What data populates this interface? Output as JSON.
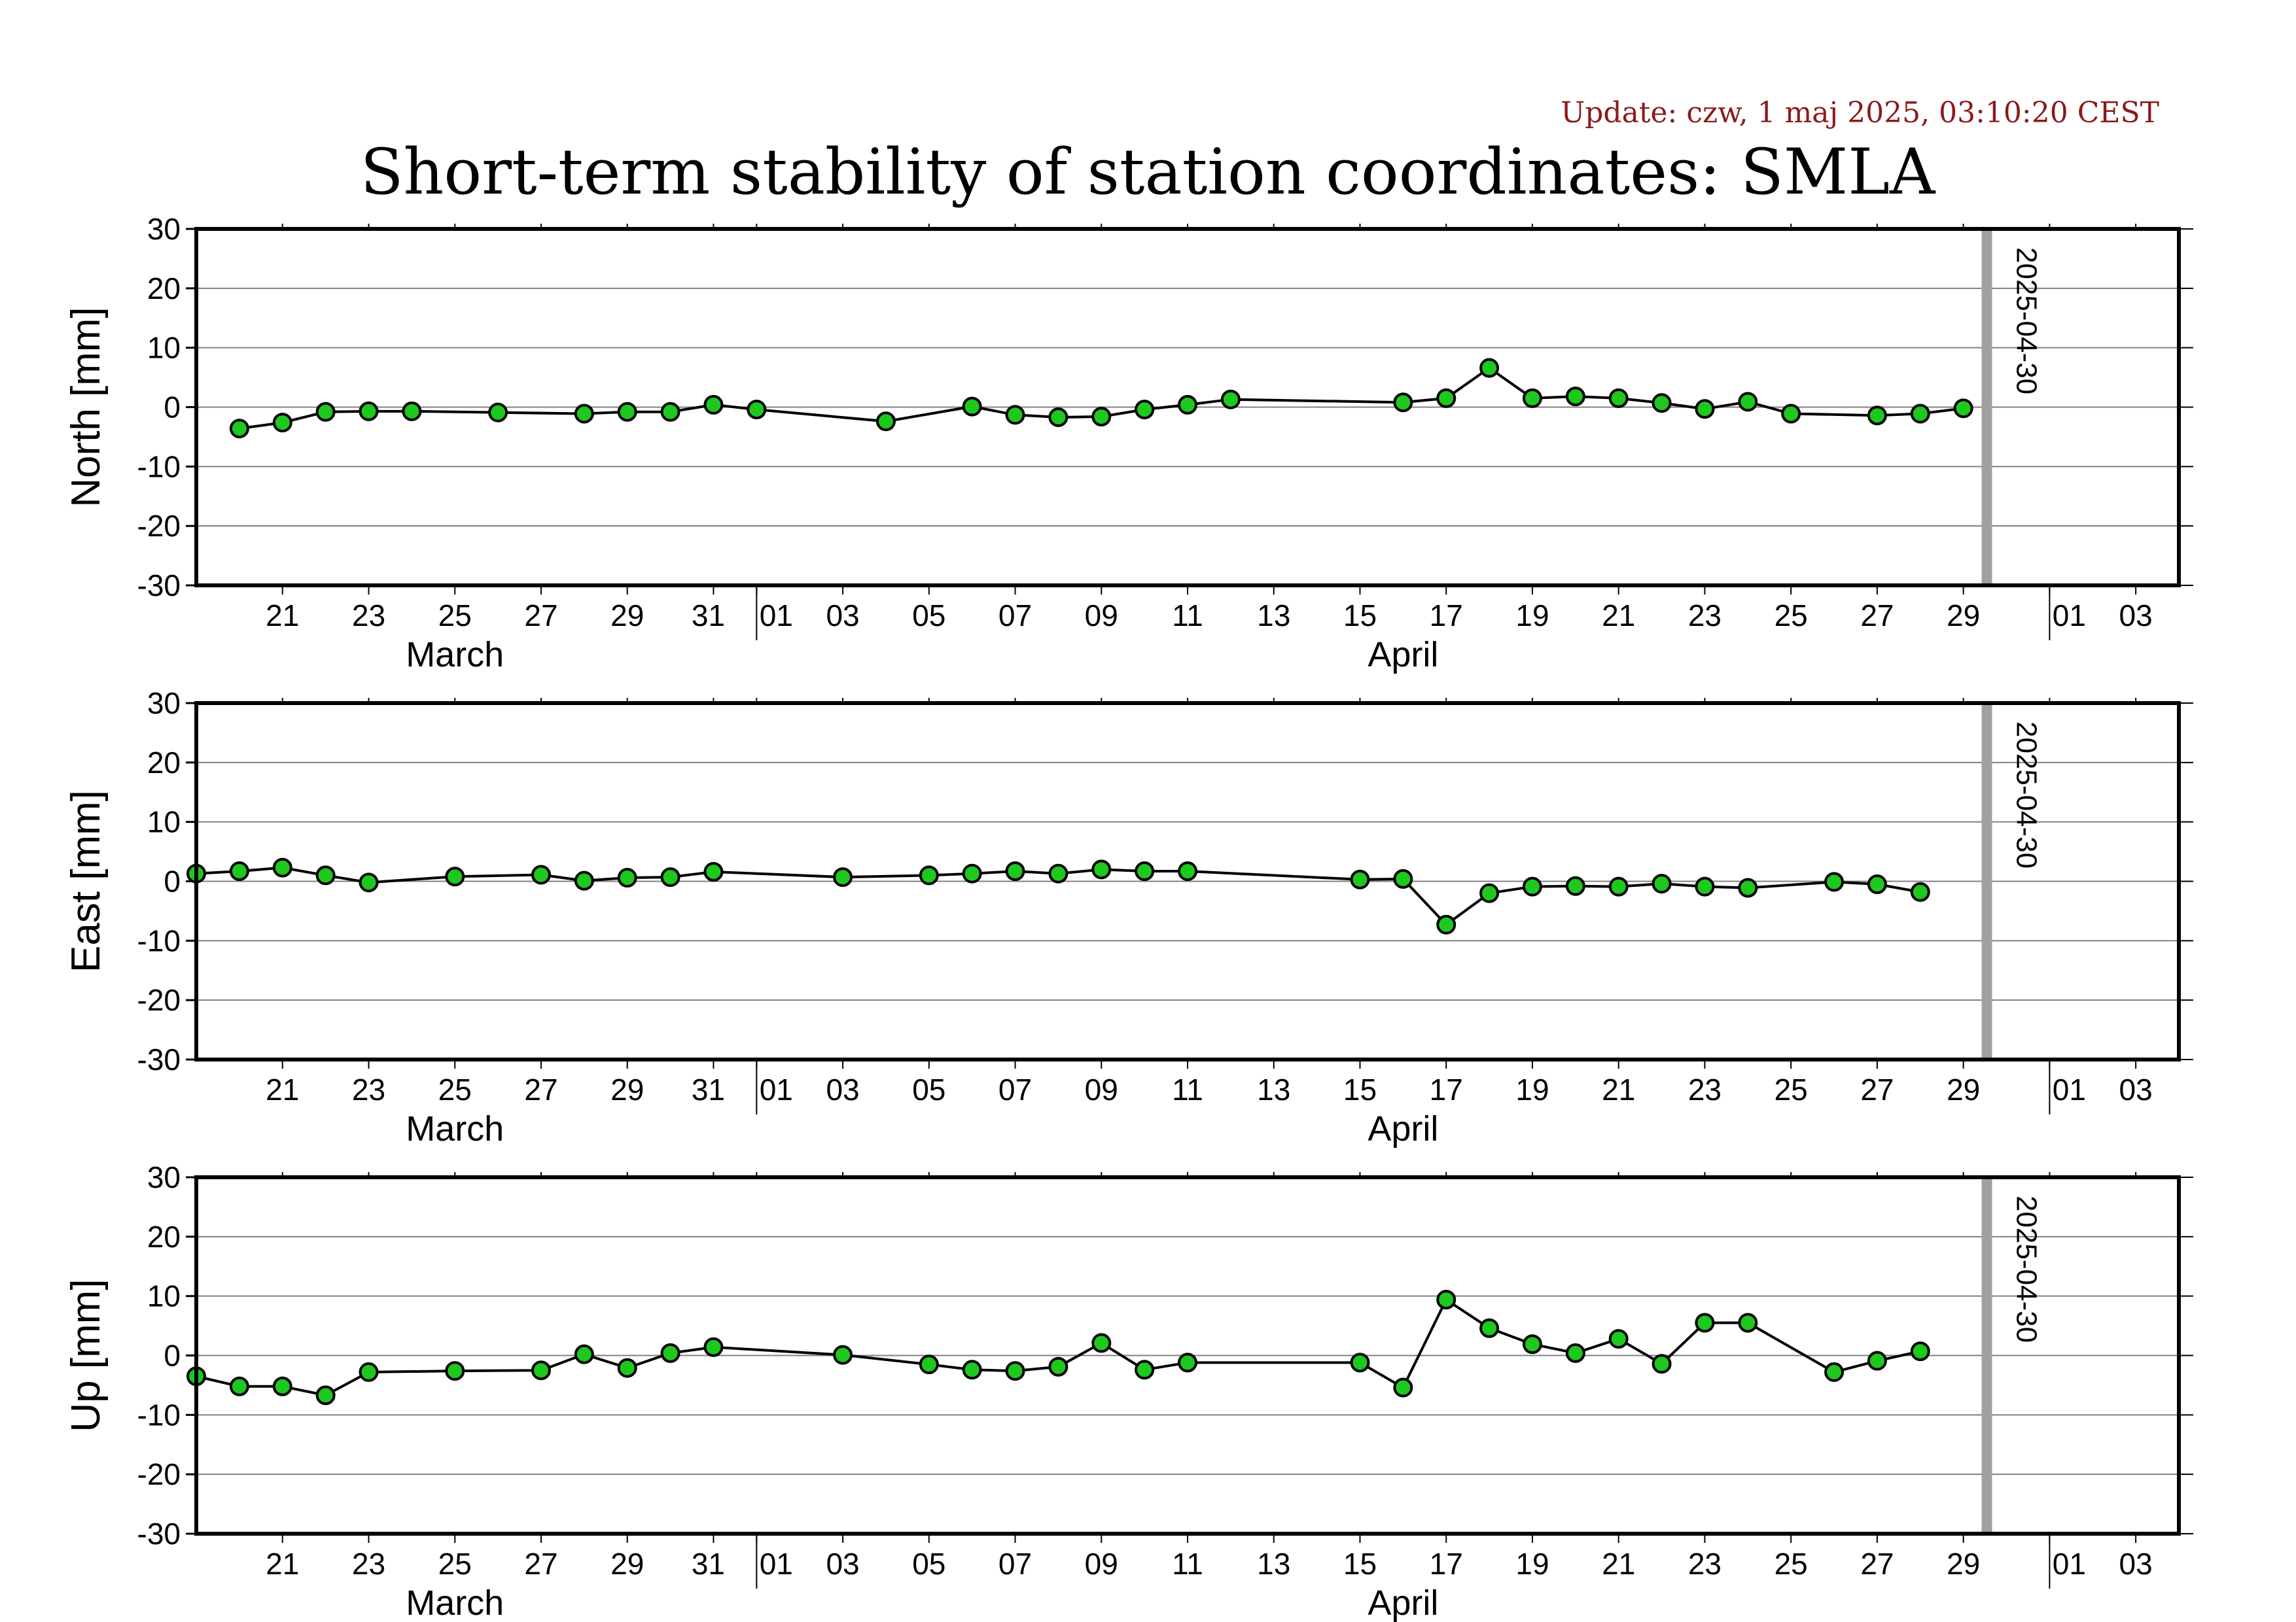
{
  "update_text": "Update: czw, 1 maj 2025, 03:10:20 CEST",
  "title": "Short-term stability of station coordinates: SMLA",
  "colors": {
    "update_text": "#8b1a1a",
    "point_fill": "#1ec81e",
    "point_stroke": "#000000",
    "line": "#000000",
    "grid": "#808080",
    "marker_line": "#a0a0a0"
  },
  "chart_data": [
    {
      "type": "line",
      "ylabel": "North [mm]",
      "ylim": [
        -30,
        30
      ],
      "yticks": [
        30,
        20,
        10,
        0,
        -10,
        -20,
        -30
      ],
      "xlim": [
        "2025-03-19",
        "2025-05-04"
      ],
      "xticks": [
        {
          "date": "2025-03-21",
          "label": "21"
        },
        {
          "date": "2025-03-23",
          "label": "23"
        },
        {
          "date": "2025-03-25",
          "label": "25"
        },
        {
          "date": "2025-03-27",
          "label": "27"
        },
        {
          "date": "2025-03-29",
          "label": "29"
        },
        {
          "date": "2025-03-31",
          "label": "31"
        },
        {
          "date": "2025-04-01",
          "label": "01"
        },
        {
          "date": "2025-04-03",
          "label": "03"
        },
        {
          "date": "2025-04-05",
          "label": "05"
        },
        {
          "date": "2025-04-07",
          "label": "07"
        },
        {
          "date": "2025-04-09",
          "label": "09"
        },
        {
          "date": "2025-04-11",
          "label": "11"
        },
        {
          "date": "2025-04-13",
          "label": "13"
        },
        {
          "date": "2025-04-15",
          "label": "15"
        },
        {
          "date": "2025-04-17",
          "label": "17"
        },
        {
          "date": "2025-04-19",
          "label": "19"
        },
        {
          "date": "2025-04-21",
          "label": "21"
        },
        {
          "date": "2025-04-23",
          "label": "23"
        },
        {
          "date": "2025-04-25",
          "label": "25"
        },
        {
          "date": "2025-04-27",
          "label": "27"
        },
        {
          "date": "2025-04-29",
          "label": "29"
        },
        {
          "date": "2025-05-01",
          "label": "01"
        },
        {
          "date": "2025-05-03",
          "label": "03"
        }
      ],
      "months": [
        {
          "date": "2025-03-25",
          "label": "March"
        },
        {
          "date": "2025-04-16",
          "label": "April"
        }
      ],
      "month_boundaries": [
        "2025-04-01",
        "2025-05-01"
      ],
      "marker": {
        "date": "2025-04-30",
        "label": "2025-04-30"
      },
      "grid": true,
      "series": [
        {
          "x": [
            "2025-03-20",
            "2025-03-21",
            "2025-03-22",
            "2025-03-23",
            "2025-03-24",
            "2025-03-26",
            "2025-03-28",
            "2025-03-29",
            "2025-03-30",
            "2025-03-31",
            "2025-04-01",
            "2025-04-04",
            "2025-04-06",
            "2025-04-07",
            "2025-04-08",
            "2025-04-09",
            "2025-04-10",
            "2025-04-11",
            "2025-04-12",
            "2025-04-16",
            "2025-04-17",
            "2025-04-18",
            "2025-04-19",
            "2025-04-20",
            "2025-04-21",
            "2025-04-22",
            "2025-04-23",
            "2025-04-24",
            "2025-04-25",
            "2025-04-27",
            "2025-04-28",
            "2025-04-29"
          ],
          "y": [
            -3.6,
            -2.6,
            -0.8,
            -0.7,
            -0.7,
            -0.9,
            -1.1,
            -0.8,
            -0.8,
            0.4,
            -0.4,
            -2.4,
            0.1,
            -1.3,
            -1.7,
            -1.6,
            -0.4,
            0.4,
            1.3,
            0.8,
            1.5,
            6.6,
            1.5,
            1.8,
            1.5,
            0.7,
            -0.3,
            0.9,
            -1.1,
            -1.4,
            -1.1,
            -0.2
          ]
        }
      ]
    },
    {
      "type": "line",
      "ylabel": "East [mm]",
      "ylim": [
        -30,
        30
      ],
      "yticks": [
        30,
        20,
        10,
        0,
        -10,
        -20,
        -30
      ],
      "xlim": [
        "2025-03-19",
        "2025-05-04"
      ],
      "xticks": [
        {
          "date": "2025-03-21",
          "label": "21"
        },
        {
          "date": "2025-03-23",
          "label": "23"
        },
        {
          "date": "2025-03-25",
          "label": "25"
        },
        {
          "date": "2025-03-27",
          "label": "27"
        },
        {
          "date": "2025-03-29",
          "label": "29"
        },
        {
          "date": "2025-03-31",
          "label": "31"
        },
        {
          "date": "2025-04-01",
          "label": "01"
        },
        {
          "date": "2025-04-03",
          "label": "03"
        },
        {
          "date": "2025-04-05",
          "label": "05"
        },
        {
          "date": "2025-04-07",
          "label": "07"
        },
        {
          "date": "2025-04-09",
          "label": "09"
        },
        {
          "date": "2025-04-11",
          "label": "11"
        },
        {
          "date": "2025-04-13",
          "label": "13"
        },
        {
          "date": "2025-04-15",
          "label": "15"
        },
        {
          "date": "2025-04-17",
          "label": "17"
        },
        {
          "date": "2025-04-19",
          "label": "19"
        },
        {
          "date": "2025-04-21",
          "label": "21"
        },
        {
          "date": "2025-04-23",
          "label": "23"
        },
        {
          "date": "2025-04-25",
          "label": "25"
        },
        {
          "date": "2025-04-27",
          "label": "27"
        },
        {
          "date": "2025-04-29",
          "label": "29"
        },
        {
          "date": "2025-05-01",
          "label": "01"
        },
        {
          "date": "2025-05-03",
          "label": "03"
        }
      ],
      "months": [
        {
          "date": "2025-03-25",
          "label": "March"
        },
        {
          "date": "2025-04-16",
          "label": "April"
        }
      ],
      "month_boundaries": [
        "2025-04-01",
        "2025-05-01"
      ],
      "marker": {
        "date": "2025-04-30",
        "label": "2025-04-30"
      },
      "grid": true,
      "series": [
        {
          "x": [
            "2025-03-19",
            "2025-03-20",
            "2025-03-21",
            "2025-03-22",
            "2025-03-23",
            "2025-03-25",
            "2025-03-27",
            "2025-03-28",
            "2025-03-29",
            "2025-03-30",
            "2025-03-31",
            "2025-04-03",
            "2025-04-05",
            "2025-04-06",
            "2025-04-07",
            "2025-04-08",
            "2025-04-09",
            "2025-04-10",
            "2025-04-11",
            "2025-04-15",
            "2025-04-16",
            "2025-04-17",
            "2025-04-18",
            "2025-04-19",
            "2025-04-20",
            "2025-04-21",
            "2025-04-22",
            "2025-04-23",
            "2025-04-24",
            "2025-04-26",
            "2025-04-27",
            "2025-04-28"
          ],
          "y": [
            1.3,
            1.7,
            2.3,
            1.0,
            -0.2,
            0.8,
            1.1,
            0.1,
            0.6,
            0.7,
            1.6,
            0.7,
            1.0,
            1.3,
            1.7,
            1.3,
            2.0,
            1.7,
            1.7,
            0.3,
            0.4,
            -7.3,
            -2.0,
            -0.9,
            -0.8,
            -0.9,
            -0.4,
            -0.9,
            -1.1,
            -0.1,
            -0.5,
            -1.8
          ]
        }
      ]
    },
    {
      "type": "line",
      "ylabel": "Up [mm]",
      "ylim": [
        -30,
        30
      ],
      "yticks": [
        30,
        20,
        10,
        0,
        -10,
        -20,
        -30
      ],
      "xlim": [
        "2025-03-19",
        "2025-05-04"
      ],
      "xticks": [
        {
          "date": "2025-03-21",
          "label": "21"
        },
        {
          "date": "2025-03-23",
          "label": "23"
        },
        {
          "date": "2025-03-25",
          "label": "25"
        },
        {
          "date": "2025-03-27",
          "label": "27"
        },
        {
          "date": "2025-03-29",
          "label": "29"
        },
        {
          "date": "2025-03-31",
          "label": "31"
        },
        {
          "date": "2025-04-01",
          "label": "01"
        },
        {
          "date": "2025-04-03",
          "label": "03"
        },
        {
          "date": "2025-04-05",
          "label": "05"
        },
        {
          "date": "2025-04-07",
          "label": "07"
        },
        {
          "date": "2025-04-09",
          "label": "09"
        },
        {
          "date": "2025-04-11",
          "label": "11"
        },
        {
          "date": "2025-04-13",
          "label": "13"
        },
        {
          "date": "2025-04-15",
          "label": "15"
        },
        {
          "date": "2025-04-17",
          "label": "17"
        },
        {
          "date": "2025-04-19",
          "label": "19"
        },
        {
          "date": "2025-04-21",
          "label": "21"
        },
        {
          "date": "2025-04-23",
          "label": "23"
        },
        {
          "date": "2025-04-25",
          "label": "25"
        },
        {
          "date": "2025-04-27",
          "label": "27"
        },
        {
          "date": "2025-04-29",
          "label": "29"
        },
        {
          "date": "2025-05-01",
          "label": "01"
        },
        {
          "date": "2025-05-03",
          "label": "03"
        }
      ],
      "months": [
        {
          "date": "2025-03-25",
          "label": "March"
        },
        {
          "date": "2025-04-16",
          "label": "April"
        }
      ],
      "month_boundaries": [
        "2025-04-01",
        "2025-05-01"
      ],
      "marker": {
        "date": "2025-04-30",
        "label": "2025-04-30"
      },
      "grid": true,
      "series": [
        {
          "x": [
            "2025-03-19",
            "2025-03-20",
            "2025-03-21",
            "2025-03-22",
            "2025-03-23",
            "2025-03-25",
            "2025-03-27",
            "2025-03-28",
            "2025-03-29",
            "2025-03-30",
            "2025-03-31",
            "2025-04-03",
            "2025-04-05",
            "2025-04-06",
            "2025-04-07",
            "2025-04-08",
            "2025-04-09",
            "2025-04-10",
            "2025-04-11",
            "2025-04-15",
            "2025-04-16",
            "2025-04-17",
            "2025-04-18",
            "2025-04-19",
            "2025-04-20",
            "2025-04-21",
            "2025-04-22",
            "2025-04-23",
            "2025-04-24",
            "2025-04-26",
            "2025-04-27",
            "2025-04-28"
          ],
          "y": [
            -3.5,
            -5.2,
            -5.2,
            -6.7,
            -2.8,
            -2.6,
            -2.5,
            0.2,
            -2.1,
            0.4,
            1.4,
            0.1,
            -1.5,
            -2.4,
            -2.6,
            -1.9,
            2.1,
            -2.4,
            -1.2,
            -1.2,
            -5.4,
            9.4,
            4.6,
            1.9,
            0.4,
            2.8,
            -1.4,
            5.5,
            5.5,
            -2.8,
            -0.9,
            0.7
          ]
        }
      ]
    }
  ]
}
